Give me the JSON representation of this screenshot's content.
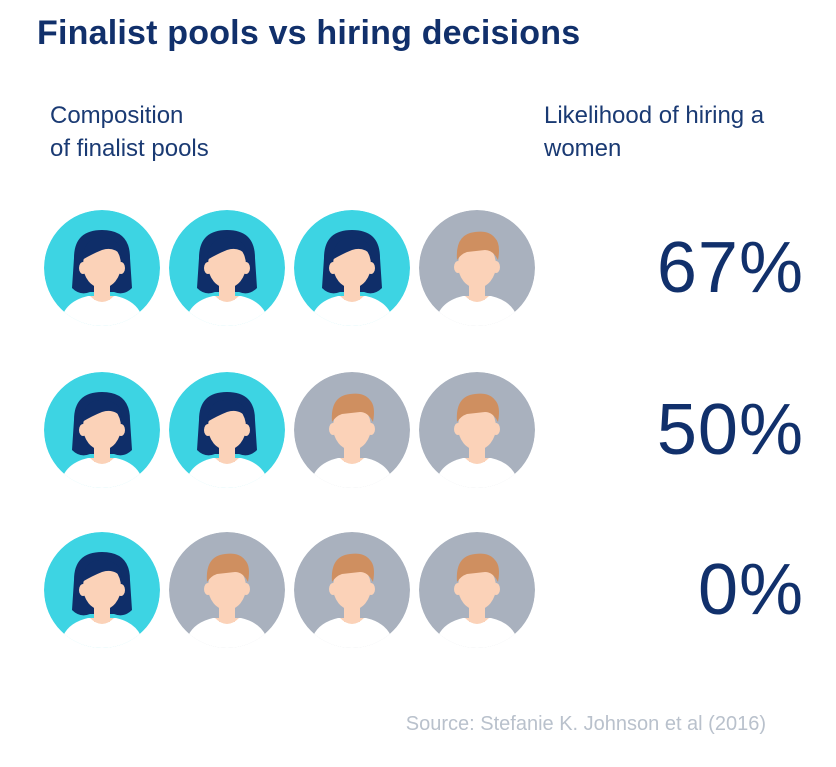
{
  "title": "Finalist pools vs hiring decisions",
  "column_left": {
    "line1": "Composition",
    "line2": "of finalist pools"
  },
  "column_right": {
    "line1": "Likelihood of hiring a",
    "line2": "women"
  },
  "source": "Source: Stefanie K. Johnson et al (2016)",
  "colors": {
    "woman_bg": "#3dd4e3",
    "man_bg": "#a9b1be",
    "title": "#11306b",
    "skin": "#fbd2b8",
    "hair_woman": "#0f2e69",
    "hair_man": "#cf8f60",
    "shirt": "#ffffff"
  },
  "chart_data": {
    "type": "table",
    "rows": [
      {
        "pool": [
          "woman",
          "woman",
          "woman",
          "man"
        ],
        "value": 67,
        "label": "67%"
      },
      {
        "pool": [
          "woman",
          "woman",
          "man",
          "man"
        ],
        "value": 50,
        "label": "50%"
      },
      {
        "pool": [
          "woman",
          "man",
          "man",
          "man"
        ],
        "value": 0,
        "label": "0%"
      }
    ]
  }
}
